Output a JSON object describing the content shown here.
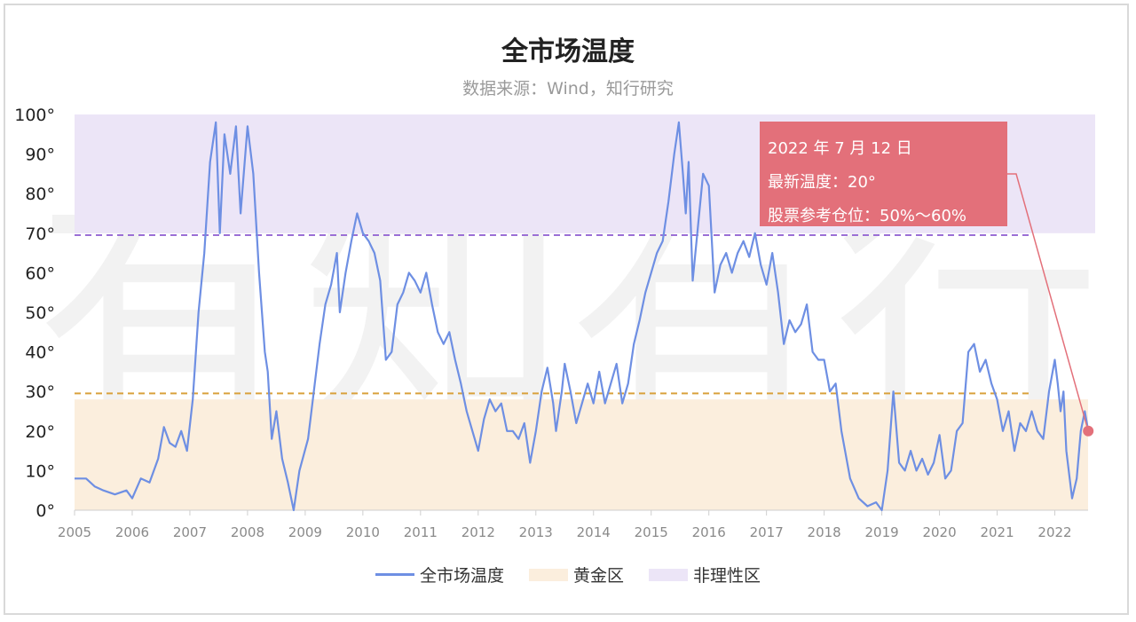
{
  "title": "全市场温度",
  "subtitle": "数据来源：Wind，知行研究",
  "watermark": "有知有行",
  "tooltip": {
    "date": "2022 年 7 月 12 日",
    "latest": "最新温度：20°",
    "position": "股票参考仓位：50%～60%"
  },
  "legend": [
    {
      "label": "全市场温度",
      "color": "#6e8fe3",
      "kind": "line"
    },
    {
      "label": "黄金区",
      "color": "#fbeedd",
      "kind": "box"
    },
    {
      "label": "非理性区",
      "color": "#ece5f7",
      "kind": "box"
    }
  ],
  "chart_data": {
    "type": "line",
    "title": "全市场温度",
    "subtitle": "数据来源：Wind，知行研究",
    "x_ticks": [
      "2005",
      "2006",
      "2007",
      "2008",
      "2009",
      "2010",
      "2011",
      "2012",
      "2013",
      "2014",
      "2015",
      "2016",
      "2017",
      "2018",
      "2019",
      "2020",
      "2021",
      "2022"
    ],
    "y_ticks": [
      "0°",
      "10°",
      "20°",
      "30°",
      "40°",
      "50°",
      "60°",
      "70°",
      "80°",
      "90°",
      "100°"
    ],
    "xlim": [
      2005,
      2022.7
    ],
    "ylim": [
      0,
      100
    ],
    "bands": [
      {
        "name": "黄金区",
        "from": 0,
        "to": 28,
        "color": "#fbeedd"
      },
      {
        "name": "非理性区",
        "from": 70,
        "to": 100,
        "color": "#ece5f7"
      }
    ],
    "thresholds": [
      {
        "value": 29.5,
        "color": "#d9a13c"
      },
      {
        "value": 69.5,
        "color": "#9b6fd6"
      }
    ],
    "series": [
      {
        "name": "全市场温度",
        "color": "#6e8fe3",
        "points": [
          [
            2005.0,
            8
          ],
          [
            2005.2,
            8
          ],
          [
            2005.35,
            6
          ],
          [
            2005.5,
            5
          ],
          [
            2005.7,
            4
          ],
          [
            2005.9,
            5
          ],
          [
            2006.0,
            3
          ],
          [
            2006.15,
            8
          ],
          [
            2006.3,
            7
          ],
          [
            2006.45,
            13
          ],
          [
            2006.55,
            21
          ],
          [
            2006.65,
            17
          ],
          [
            2006.75,
            16
          ],
          [
            2006.85,
            20
          ],
          [
            2006.95,
            15
          ],
          [
            2007.05,
            28
          ],
          [
            2007.15,
            50
          ],
          [
            2007.25,
            65
          ],
          [
            2007.35,
            88
          ],
          [
            2007.45,
            98
          ],
          [
            2007.52,
            70
          ],
          [
            2007.6,
            95
          ],
          [
            2007.7,
            85
          ],
          [
            2007.8,
            97
          ],
          [
            2007.88,
            75
          ],
          [
            2008.0,
            97
          ],
          [
            2008.1,
            85
          ],
          [
            2008.2,
            60
          ],
          [
            2008.3,
            40
          ],
          [
            2008.35,
            35
          ],
          [
            2008.42,
            18
          ],
          [
            2008.5,
            25
          ],
          [
            2008.6,
            13
          ],
          [
            2008.7,
            7
          ],
          [
            2008.8,
            0
          ],
          [
            2008.9,
            10
          ],
          [
            2009.05,
            18
          ],
          [
            2009.15,
            30
          ],
          [
            2009.25,
            42
          ],
          [
            2009.35,
            52
          ],
          [
            2009.45,
            57
          ],
          [
            2009.55,
            65
          ],
          [
            2009.6,
            50
          ],
          [
            2009.7,
            60
          ],
          [
            2009.8,
            68
          ],
          [
            2009.9,
            75
          ],
          [
            2010.0,
            70
          ],
          [
            2010.1,
            68
          ],
          [
            2010.2,
            65
          ],
          [
            2010.3,
            58
          ],
          [
            2010.4,
            38
          ],
          [
            2010.5,
            40
          ],
          [
            2010.6,
            52
          ],
          [
            2010.7,
            55
          ],
          [
            2010.8,
            60
          ],
          [
            2010.9,
            58
          ],
          [
            2011.0,
            55
          ],
          [
            2011.1,
            60
          ],
          [
            2011.2,
            52
          ],
          [
            2011.3,
            45
          ],
          [
            2011.4,
            42
          ],
          [
            2011.5,
            45
          ],
          [
            2011.6,
            38
          ],
          [
            2011.7,
            32
          ],
          [
            2011.8,
            25
          ],
          [
            2011.9,
            20
          ],
          [
            2012.0,
            15
          ],
          [
            2012.1,
            23
          ],
          [
            2012.2,
            28
          ],
          [
            2012.3,
            25
          ],
          [
            2012.4,
            27
          ],
          [
            2012.5,
            20
          ],
          [
            2012.6,
            20
          ],
          [
            2012.7,
            18
          ],
          [
            2012.8,
            22
          ],
          [
            2012.9,
            12
          ],
          [
            2013.0,
            20
          ],
          [
            2013.1,
            30
          ],
          [
            2013.2,
            36
          ],
          [
            2013.3,
            27
          ],
          [
            2013.35,
            20
          ],
          [
            2013.45,
            30
          ],
          [
            2013.5,
            37
          ],
          [
            2013.6,
            30
          ],
          [
            2013.7,
            22
          ],
          [
            2013.8,
            27
          ],
          [
            2013.9,
            32
          ],
          [
            2014.0,
            27
          ],
          [
            2014.1,
            35
          ],
          [
            2014.2,
            27
          ],
          [
            2014.3,
            32
          ],
          [
            2014.4,
            37
          ],
          [
            2014.5,
            27
          ],
          [
            2014.6,
            32
          ],
          [
            2014.7,
            42
          ],
          [
            2014.8,
            48
          ],
          [
            2014.9,
            55
          ],
          [
            2015.0,
            60
          ],
          [
            2015.1,
            65
          ],
          [
            2015.2,
            68
          ],
          [
            2015.3,
            78
          ],
          [
            2015.4,
            90
          ],
          [
            2015.48,
            98
          ],
          [
            2015.55,
            85
          ],
          [
            2015.6,
            75
          ],
          [
            2015.65,
            88
          ],
          [
            2015.72,
            58
          ],
          [
            2015.8,
            70
          ],
          [
            2015.9,
            85
          ],
          [
            2016.0,
            82
          ],
          [
            2016.1,
            55
          ],
          [
            2016.2,
            62
          ],
          [
            2016.3,
            65
          ],
          [
            2016.4,
            60
          ],
          [
            2016.5,
            65
          ],
          [
            2016.6,
            68
          ],
          [
            2016.7,
            64
          ],
          [
            2016.8,
            70
          ],
          [
            2016.9,
            62
          ],
          [
            2017.0,
            57
          ],
          [
            2017.1,
            65
          ],
          [
            2017.2,
            55
          ],
          [
            2017.3,
            42
          ],
          [
            2017.4,
            48
          ],
          [
            2017.5,
            45
          ],
          [
            2017.6,
            47
          ],
          [
            2017.7,
            52
          ],
          [
            2017.8,
            40
          ],
          [
            2017.9,
            38
          ],
          [
            2018.0,
            38
          ],
          [
            2018.1,
            30
          ],
          [
            2018.2,
            32
          ],
          [
            2018.3,
            20
          ],
          [
            2018.45,
            8
          ],
          [
            2018.6,
            3
          ],
          [
            2018.75,
            1
          ],
          [
            2018.9,
            2
          ],
          [
            2019.0,
            0
          ],
          [
            2019.1,
            10
          ],
          [
            2019.2,
            30
          ],
          [
            2019.3,
            12
          ],
          [
            2019.4,
            10
          ],
          [
            2019.5,
            15
          ],
          [
            2019.6,
            10
          ],
          [
            2019.7,
            13
          ],
          [
            2019.8,
            9
          ],
          [
            2019.9,
            12
          ],
          [
            2020.0,
            19
          ],
          [
            2020.1,
            8
          ],
          [
            2020.2,
            10
          ],
          [
            2020.3,
            20
          ],
          [
            2020.4,
            22
          ],
          [
            2020.5,
            40
          ],
          [
            2020.6,
            42
          ],
          [
            2020.7,
            35
          ],
          [
            2020.8,
            38
          ],
          [
            2020.9,
            32
          ],
          [
            2021.0,
            28
          ],
          [
            2021.1,
            20
          ],
          [
            2021.2,
            25
          ],
          [
            2021.3,
            15
          ],
          [
            2021.4,
            22
          ],
          [
            2021.5,
            20
          ],
          [
            2021.6,
            25
          ],
          [
            2021.7,
            20
          ],
          [
            2021.8,
            18
          ],
          [
            2021.9,
            30
          ],
          [
            2022.0,
            38
          ],
          [
            2022.05,
            32
          ],
          [
            2022.1,
            25
          ],
          [
            2022.15,
            30
          ],
          [
            2022.2,
            15
          ],
          [
            2022.3,
            3
          ],
          [
            2022.38,
            8
          ],
          [
            2022.45,
            20
          ],
          [
            2022.52,
            25
          ],
          [
            2022.58,
            20
          ]
        ]
      }
    ],
    "latest_point": {
      "x": 2022.58,
      "y": 20
    }
  }
}
